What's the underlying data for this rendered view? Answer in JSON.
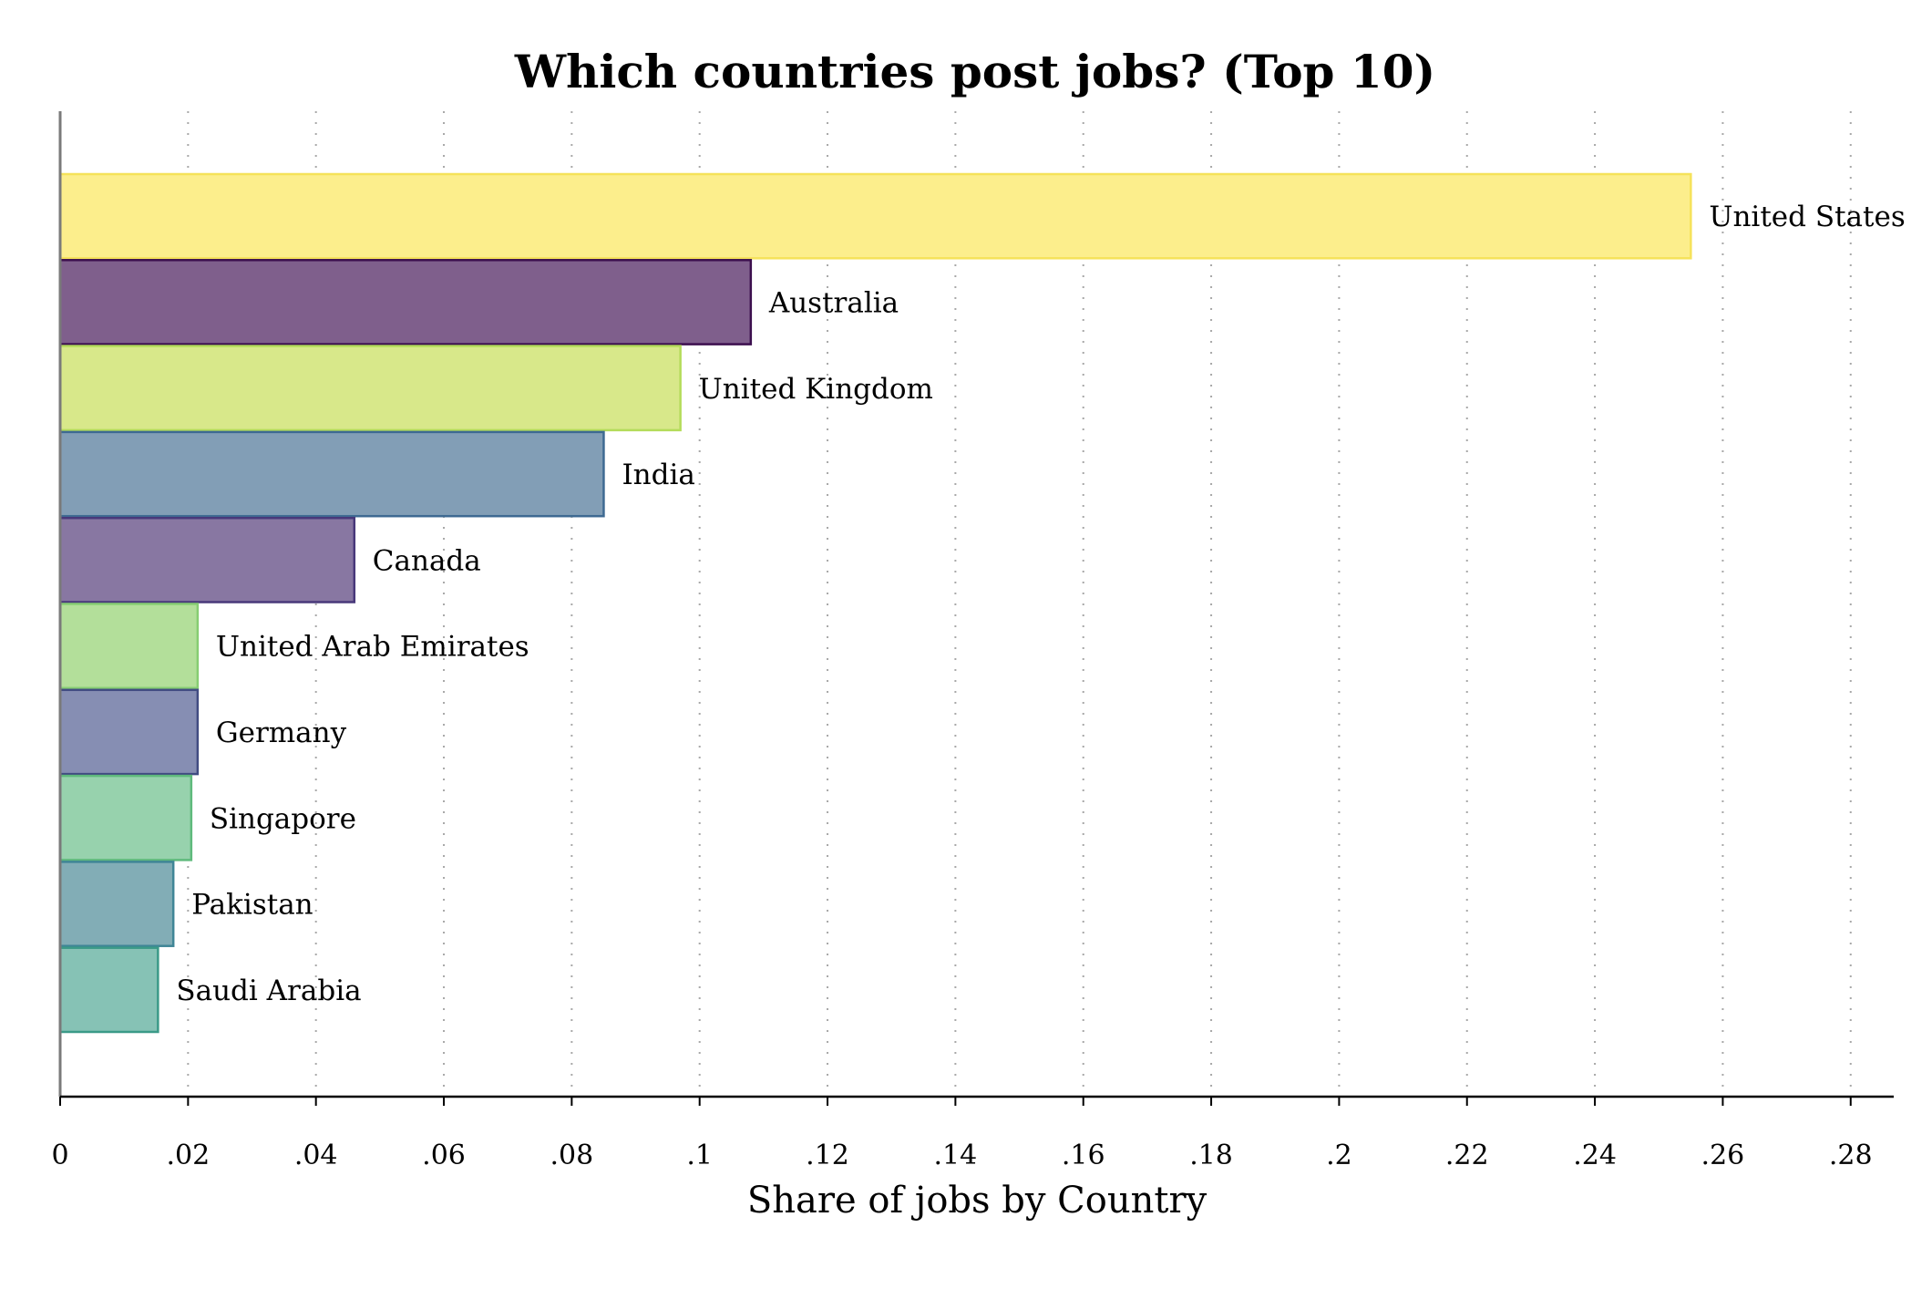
{
  "chart_data": {
    "type": "bar",
    "orientation": "horizontal",
    "title": "Which countries post jobs? (Top 10)",
    "xlabel": "Share of jobs by Country",
    "ylabel": "",
    "xlim": [
      0,
      0.287
    ],
    "xticks": [
      0,
      0.02,
      0.04,
      0.06,
      0.08,
      0.1,
      0.12,
      0.14,
      0.16,
      0.18,
      0.2,
      0.22,
      0.24,
      0.26,
      0.28
    ],
    "xtick_labels": [
      "0",
      ".02",
      ".04",
      ".06",
      ".08",
      ".1",
      ".12",
      ".14",
      ".16",
      ".18",
      ".2",
      ".22",
      ".24",
      ".26",
      ".28"
    ],
    "grid": "vertical dotted",
    "categories": [
      "United States",
      "Australia",
      "United Kingdom",
      "India",
      "Canada",
      "United Arab Emirates",
      "Germany",
      "Singapore",
      "Pakistan",
      "Saudi Arabia"
    ],
    "values": [
      0.255,
      0.108,
      0.097,
      0.085,
      0.046,
      0.0215,
      0.0215,
      0.0205,
      0.0177,
      0.0153
    ],
    "colors": [
      {
        "fill": "#fcee8c",
        "stroke": "#f5e25a"
      },
      {
        "fill": "#7f5f8c",
        "stroke": "#3c0f4e"
      },
      {
        "fill": "#d8e88a",
        "stroke": "#b4dc5a"
      },
      {
        "fill": "#829eb6",
        "stroke": "#3e6a92"
      },
      {
        "fill": "#8877a2",
        "stroke": "#48387a"
      },
      {
        "fill": "#b3df9a",
        "stroke": "#86cd72"
      },
      {
        "fill": "#868eb3",
        "stroke": "#414c82"
      },
      {
        "fill": "#97d2ad",
        "stroke": "#5fba7c"
      },
      {
        "fill": "#82adb6",
        "stroke": "#3f8596"
      },
      {
        "fill": "#86c2b5",
        "stroke": "#3b9a88"
      }
    ]
  }
}
